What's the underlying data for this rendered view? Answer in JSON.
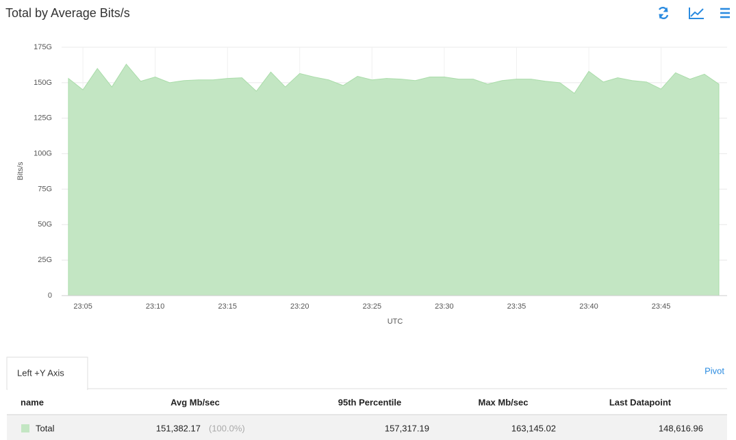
{
  "chart_data": {
    "type": "area",
    "title": "Total by Average Bits/s",
    "ylabel": "Bits/s",
    "xlabel": "UTC",
    "x": [
      "23:04",
      "23:05",
      "23:06",
      "23:07",
      "23:08",
      "23:09",
      "23:10",
      "23:11",
      "23:12",
      "23:13",
      "23:14",
      "23:15",
      "23:16",
      "23:17",
      "23:18",
      "23:19",
      "23:20",
      "23:21",
      "23:22",
      "23:23",
      "23:24",
      "23:25",
      "23:26",
      "23:27",
      "23:28",
      "23:29",
      "23:30",
      "23:31",
      "23:32",
      "23:33",
      "23:34",
      "23:35",
      "23:36",
      "23:37",
      "23:38",
      "23:39",
      "23:40",
      "23:41",
      "23:42",
      "23:43",
      "23:44",
      "23:45",
      "23:46",
      "23:47",
      "23:48",
      "23:49"
    ],
    "values": [
      153,
      145,
      160,
      147,
      163,
      151,
      154,
      150,
      151.5,
      152,
      152,
      153,
      153.5,
      144,
      157.5,
      147,
      156.5,
      154,
      152,
      148,
      154.5,
      152,
      153,
      152.5,
      151.5,
      154,
      154,
      152.5,
      152.5,
      149,
      151.5,
      152.5,
      152.5,
      151,
      150,
      142.5,
      158,
      150.5,
      153.5,
      151.5,
      150.5,
      145.5,
      157,
      152.5,
      156,
      149
    ],
    "color": "#c3e6c3",
    "line_color": "#a9dca9",
    "ylim": [
      0,
      175
    ],
    "yticks": [
      0,
      {
        "value": 25,
        "label": "25G"
      },
      {
        "value": 50,
        "label": "50G"
      },
      {
        "value": 75,
        "label": "75G"
      },
      {
        "value": 100,
        "label": "100G"
      },
      {
        "value": 125,
        "label": "125G"
      },
      {
        "value": 150,
        "label": "150G"
      },
      {
        "value": 175,
        "label": "175G"
      }
    ],
    "xticks": [
      "23:05",
      "23:10",
      "23:15",
      "23:20",
      "23:25",
      "23:30",
      "23:35",
      "23:40",
      "23:45"
    ],
    "grid": true
  },
  "tab": "Left +Y Axis",
  "pivot": "Pivot",
  "table": {
    "headers": [
      "name",
      "Avg Mb/sec",
      "95th Percentile",
      "Max Mb/sec",
      "Last Datapoint"
    ],
    "rows": [
      {
        "name": "Total",
        "avg": "151,382.17",
        "share": "(100.0%)",
        "p95": "157,317.19",
        "max": "163,145.02",
        "last": "148,616.96"
      }
    ]
  }
}
